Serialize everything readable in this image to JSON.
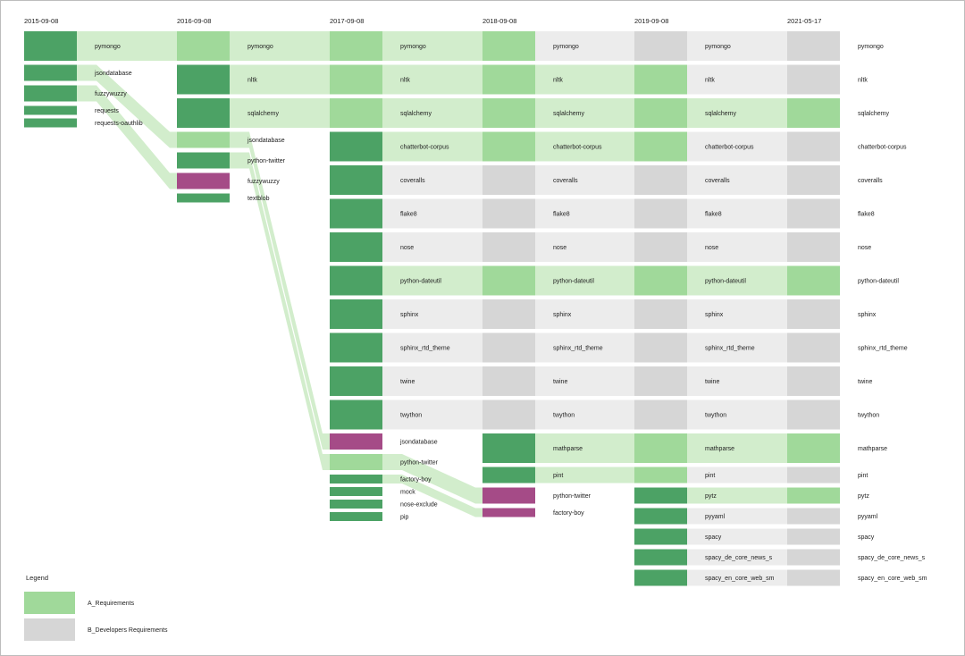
{
  "colors": {
    "requirements": "#a0d99a",
    "requirements_band": "#d2edcc",
    "added": "#4ca265",
    "removed": "#a54b87",
    "dev_requirements": "#d6d6d6",
    "dev_band": "#ececec"
  },
  "snapshots": [
    {
      "date": "2015-09-08",
      "packages": [
        {
          "name": "pymongo",
          "state": "added",
          "size": "L"
        },
        {
          "name": "jsondatabase",
          "state": "added",
          "size": "M"
        },
        {
          "name": "fuzzywuzzy",
          "state": "added",
          "size": "M"
        },
        {
          "name": "requests",
          "state": "added",
          "size": "S"
        },
        {
          "name": "requests-oauthlib",
          "state": "added",
          "size": "S"
        }
      ]
    },
    {
      "date": "2016-09-08",
      "packages": [
        {
          "name": "pymongo",
          "state": "req",
          "size": "L"
        },
        {
          "name": "nltk",
          "state": "added",
          "size": "L"
        },
        {
          "name": "sqlalchemy",
          "state": "added",
          "size": "L"
        },
        {
          "name": "jsondatabase",
          "state": "req",
          "size": "M"
        },
        {
          "name": "python-twitter",
          "state": "added",
          "size": "M"
        },
        {
          "name": "fuzzywuzzy",
          "state": "removed",
          "size": "M"
        },
        {
          "name": "textblob",
          "state": "added",
          "size": "S"
        }
      ]
    },
    {
      "date": "2017-09-08",
      "packages": [
        {
          "name": "pymongo",
          "state": "req",
          "size": "L"
        },
        {
          "name": "nltk",
          "state": "req",
          "size": "L"
        },
        {
          "name": "sqlalchemy",
          "state": "req",
          "size": "L"
        },
        {
          "name": "chatterbot-corpus",
          "state": "added",
          "size": "L"
        },
        {
          "name": "coveralls",
          "state": "added",
          "size": "L"
        },
        {
          "name": "flake8",
          "state": "added",
          "size": "L"
        },
        {
          "name": "nose",
          "state": "added",
          "size": "L"
        },
        {
          "name": "python-dateutil",
          "state": "added",
          "size": "L"
        },
        {
          "name": "sphinx",
          "state": "added",
          "size": "L"
        },
        {
          "name": "sphinx_rtd_theme",
          "state": "added",
          "size": "L"
        },
        {
          "name": "twine",
          "state": "added",
          "size": "L"
        },
        {
          "name": "twython",
          "state": "added",
          "size": "L"
        },
        {
          "name": "jsondatabase",
          "state": "removed",
          "size": "M"
        },
        {
          "name": "python-twitter",
          "state": "req",
          "size": "M"
        },
        {
          "name": "factory-boy",
          "state": "added",
          "size": "S"
        },
        {
          "name": "mock",
          "state": "added",
          "size": "S"
        },
        {
          "name": "nose-exclude",
          "state": "added",
          "size": "S"
        },
        {
          "name": "pip",
          "state": "added",
          "size": "S"
        }
      ]
    },
    {
      "date": "2018-09-08",
      "packages": [
        {
          "name": "pymongo",
          "state": "req",
          "size": "L"
        },
        {
          "name": "nltk",
          "state": "req",
          "size": "L"
        },
        {
          "name": "sqlalchemy",
          "state": "req",
          "size": "L"
        },
        {
          "name": "chatterbot-corpus",
          "state": "req",
          "size": "L"
        },
        {
          "name": "coveralls",
          "state": "dev",
          "size": "L"
        },
        {
          "name": "flake8",
          "state": "dev",
          "size": "L"
        },
        {
          "name": "nose",
          "state": "dev",
          "size": "L"
        },
        {
          "name": "python-dateutil",
          "state": "req",
          "size": "L"
        },
        {
          "name": "sphinx",
          "state": "dev",
          "size": "L"
        },
        {
          "name": "sphinx_rtd_theme",
          "state": "dev",
          "size": "L"
        },
        {
          "name": "twine",
          "state": "dev",
          "size": "L"
        },
        {
          "name": "twython",
          "state": "dev",
          "size": "L"
        },
        {
          "name": "mathparse",
          "state": "added",
          "size": "L"
        },
        {
          "name": "pint",
          "state": "added",
          "size": "M"
        },
        {
          "name": "python-twitter",
          "state": "removed",
          "size": "M"
        },
        {
          "name": "factory-boy",
          "state": "removed",
          "size": "S"
        }
      ]
    },
    {
      "date": "2019-09-08",
      "packages": [
        {
          "name": "pymongo",
          "state": "dev",
          "size": "L"
        },
        {
          "name": "nltk",
          "state": "req",
          "size": "L"
        },
        {
          "name": "sqlalchemy",
          "state": "req",
          "size": "L"
        },
        {
          "name": "chatterbot-corpus",
          "state": "req",
          "size": "L"
        },
        {
          "name": "coveralls",
          "state": "dev",
          "size": "L"
        },
        {
          "name": "flake8",
          "state": "dev",
          "size": "L"
        },
        {
          "name": "nose",
          "state": "dev",
          "size": "L"
        },
        {
          "name": "python-dateutil",
          "state": "req",
          "size": "L"
        },
        {
          "name": "sphinx",
          "state": "dev",
          "size": "L"
        },
        {
          "name": "sphinx_rtd_theme",
          "state": "dev",
          "size": "L"
        },
        {
          "name": "twine",
          "state": "dev",
          "size": "L"
        },
        {
          "name": "twython",
          "state": "dev",
          "size": "L"
        },
        {
          "name": "mathparse",
          "state": "req",
          "size": "L"
        },
        {
          "name": "pint",
          "state": "req",
          "size": "M"
        },
        {
          "name": "pytz",
          "state": "added",
          "size": "M"
        },
        {
          "name": "pyyaml",
          "state": "added",
          "size": "M"
        },
        {
          "name": "spacy",
          "state": "added",
          "size": "M"
        },
        {
          "name": "spacy_de_core_news_s",
          "state": "added",
          "size": "M"
        },
        {
          "name": "spacy_en_core_web_sm",
          "state": "added",
          "size": "M"
        }
      ]
    },
    {
      "date": "2021-05-17",
      "packages": [
        {
          "name": "pymongo",
          "state": "dev",
          "size": "L"
        },
        {
          "name": "nltk",
          "state": "dev",
          "size": "L"
        },
        {
          "name": "sqlalchemy",
          "state": "req",
          "size": "L"
        },
        {
          "name": "chatterbot-corpus",
          "state": "dev",
          "size": "L"
        },
        {
          "name": "coveralls",
          "state": "dev",
          "size": "L"
        },
        {
          "name": "flake8",
          "state": "dev",
          "size": "L"
        },
        {
          "name": "nose",
          "state": "dev",
          "size": "L"
        },
        {
          "name": "python-dateutil",
          "state": "req",
          "size": "L"
        },
        {
          "name": "sphinx",
          "state": "dev",
          "size": "L"
        },
        {
          "name": "sphinx_rtd_theme",
          "state": "dev",
          "size": "L"
        },
        {
          "name": "twine",
          "state": "dev",
          "size": "L"
        },
        {
          "name": "twython",
          "state": "dev",
          "size": "L"
        },
        {
          "name": "mathparse",
          "state": "req",
          "size": "L"
        },
        {
          "name": "pint",
          "state": "dev",
          "size": "M"
        },
        {
          "name": "pytz",
          "state": "req",
          "size": "M"
        },
        {
          "name": "pyyaml",
          "state": "dev",
          "size": "M"
        },
        {
          "name": "spacy",
          "state": "dev",
          "size": "M"
        },
        {
          "name": "spacy_de_core_news_s",
          "state": "dev",
          "size": "M"
        },
        {
          "name": "spacy_en_core_web_sm",
          "state": "dev",
          "size": "M"
        }
      ]
    }
  ],
  "legend": {
    "title": "Legend",
    "items": [
      {
        "label": "A_Requirements",
        "state": "req"
      },
      {
        "label": "B_Developers Requirements",
        "state": "dev"
      }
    ]
  }
}
